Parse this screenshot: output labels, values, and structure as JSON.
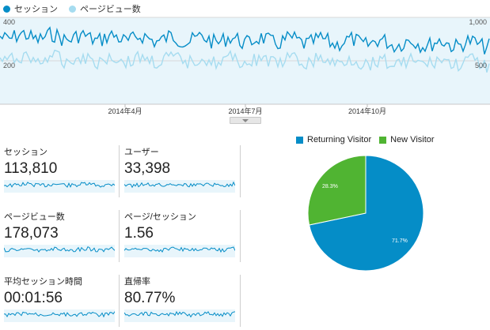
{
  "legend": {
    "series1_label": "セッション",
    "series2_label": "ページビュー数",
    "series1_color": "#058dc7",
    "series2_color": "#a6dcf0"
  },
  "chart": {
    "left_axis_top": "400",
    "left_axis_mid": "200",
    "right_axis_top": "1,000",
    "right_axis_mid": "500",
    "x_ticks": [
      "2014年4月",
      "2014年7月",
      "2014年10月"
    ],
    "fill_color": "#e8f5fb"
  },
  "metrics": [
    {
      "label": "セッション",
      "value": "113,810"
    },
    {
      "label": "ユーザー",
      "value": "33,398"
    },
    {
      "label": "ページビュー数",
      "value": "178,073"
    },
    {
      "label": "ページ/セッション",
      "value": "1.56"
    },
    {
      "label": "平均セッション時間",
      "value": "00:01:56"
    },
    {
      "label": "直帰率",
      "value": "80.77%"
    }
  ],
  "pie": {
    "slices": [
      {
        "name": "Returning Visitor",
        "percent": 71.7,
        "label": "71.7%",
        "color": "#058dc7"
      },
      {
        "name": "New Visitor",
        "percent": 28.3,
        "label": "28.3%",
        "color": "#50b432"
      }
    ]
  }
}
